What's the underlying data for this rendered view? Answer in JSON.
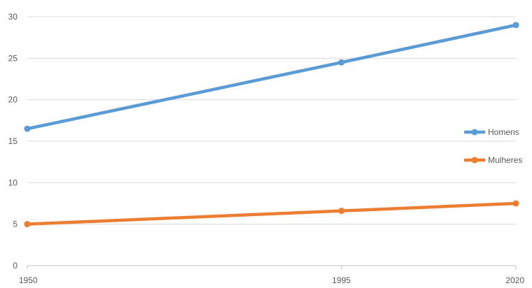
{
  "chart_data": {
    "type": "line",
    "title": "",
    "xlabel": "",
    "ylabel": "",
    "x": [
      "1950",
      "1995",
      "2020"
    ],
    "ylim": [
      0,
      30
    ],
    "yticks": [
      "0",
      "5",
      "10",
      "15",
      "20",
      "25",
      "30"
    ],
    "grid": true,
    "legend_position": "right",
    "series": [
      {
        "name": "Homens",
        "values": [
          16.5,
          24.5,
          29.0
        ],
        "color": "#5b9bd5"
      },
      {
        "name": "Mulheres",
        "values": [
          5.0,
          6.6,
          7.5
        ],
        "color": "#ed7d31"
      }
    ]
  }
}
